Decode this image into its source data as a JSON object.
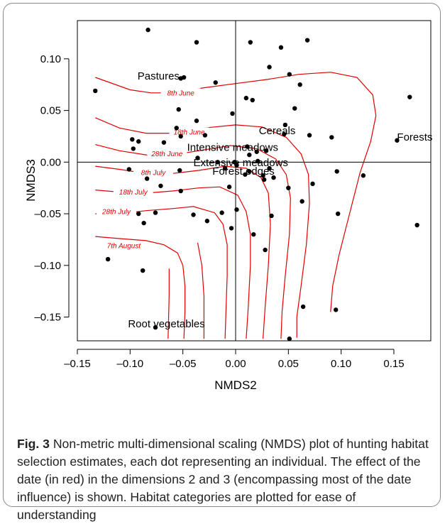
{
  "chart_data": {
    "type": "scatter",
    "xlabel": "NMDS2",
    "ylabel": "NMDS3",
    "xlim": [
      -0.15,
      0.185
    ],
    "ylim": [
      -0.173,
      0.137
    ],
    "xticks": [
      -0.15,
      -0.1,
      -0.05,
      0.0,
      0.05,
      0.1,
      0.15
    ],
    "xtick_labels": [
      "–0.15",
      "–0.10",
      "–0.05",
      "0.00",
      "0.05",
      "0.10",
      "0.15"
    ],
    "yticks": [
      0.1,
      0.05,
      0.0,
      -0.05,
      -0.1,
      -0.15
    ],
    "ytick_labels": [
      "0.10",
      "0.05",
      "0.00",
      "–0.05",
      "–0.10",
      "–0.15"
    ],
    "reference_lines": {
      "x": 0,
      "y": 0
    },
    "points": [
      [
        -0.133,
        0.069
      ],
      [
        -0.083,
        0.128
      ],
      [
        -0.037,
        0.116
      ],
      [
        -0.052,
        0.081
      ],
      [
        -0.049,
        0.082
      ],
      [
        -0.019,
        0.077
      ],
      [
        0.014,
        0.116
      ],
      [
        0.043,
        0.111
      ],
      [
        0.068,
        0.118
      ],
      [
        0.032,
        0.092
      ],
      [
        0.051,
        0.085
      ],
      [
        0.061,
        0.075
      ],
      [
        0.01,
        0.062
      ],
      [
        0.016,
        0.06
      ],
      [
        0.056,
        0.052
      ],
      [
        0.165,
        0.063
      ],
      [
        -0.054,
        0.051
      ],
      [
        -0.037,
        0.04
      ],
      [
        -0.056,
        0.033
      ],
      [
        -0.052,
        0.025
      ],
      [
        -0.029,
        0.026
      ],
      [
        -0.068,
        0.019
      ],
      [
        -0.098,
        0.022
      ],
      [
        -0.092,
        0.02
      ],
      [
        -0.097,
        0.013
      ],
      [
        -0.003,
        0.047
      ],
      [
        0.047,
        0.036
      ],
      [
        0.046,
        0.027
      ],
      [
        0.07,
        0.026
      ],
      [
        0.091,
        0.024
      ],
      [
        0.153,
        0.021
      ],
      [
        0.011,
        0.015
      ],
      [
        0.02,
        0.01
      ],
      [
        0.029,
        0.011
      ],
      [
        -0.036,
        0.004
      ],
      [
        -0.017,
        0.0
      ],
      [
        -0.001,
        0.0
      ],
      [
        0.013,
        0.007
      ],
      [
        0.021,
        0.001
      ],
      [
        -0.101,
        -0.007
      ],
      [
        -0.053,
        -0.008
      ],
      [
        -0.01,
        -0.006
      ],
      [
        0.001,
        -0.003
      ],
      [
        0.009,
        -0.012
      ],
      [
        0.013,
        -0.009
      ],
      [
        0.026,
        -0.013
      ],
      [
        0.027,
        -0.017
      ],
      [
        0.032,
        -0.006
      ],
      [
        0.036,
        -0.015
      ],
      [
        -0.084,
        -0.016
      ],
      [
        -0.071,
        -0.023
      ],
      [
        -0.006,
        -0.024
      ],
      [
        0.05,
        -0.025
      ],
      [
        0.073,
        -0.021
      ],
      [
        0.096,
        -0.009
      ],
      [
        0.121,
        -0.013
      ],
      [
        -0.052,
        -0.028
      ],
      [
        0.001,
        -0.046
      ],
      [
        0.063,
        -0.038
      ],
      [
        -0.092,
        -0.05
      ],
      [
        -0.076,
        -0.049
      ],
      [
        -0.04,
        -0.051
      ],
      [
        -0.027,
        -0.057
      ],
      [
        -0.013,
        -0.049
      ],
      [
        0.034,
        -0.052
      ],
      [
        0.097,
        -0.05
      ],
      [
        -0.087,
        -0.059
      ],
      [
        -0.004,
        -0.064
      ],
      [
        0.017,
        -0.07
      ],
      [
        0.028,
        -0.085
      ],
      [
        0.172,
        -0.061
      ],
      [
        -0.121,
        -0.094
      ],
      [
        -0.088,
        -0.105
      ],
      [
        -0.076,
        -0.16
      ],
      [
        0.064,
        -0.14
      ],
      [
        0.095,
        -0.143
      ],
      [
        0.051,
        -0.171
      ]
    ],
    "habitat_labels": [
      {
        "text": "Pastures",
        "x": -0.093,
        "y": 0.08
      },
      {
        "text": "Cereals",
        "x": 0.022,
        "y": 0.027
      },
      {
        "text": "Forests",
        "x": 0.153,
        "y": 0.021
      },
      {
        "text": "Intensive meadows",
        "x": -0.046,
        "y": 0.011
      },
      {
        "text": "Extensive meadows",
        "x": -0.04,
        "y": -0.004
      },
      {
        "text": "Forest edges",
        "x": -0.022,
        "y": -0.012
      },
      {
        "text": "Root vegetables",
        "x": -0.102,
        "y": -0.16
      }
    ],
    "contour_color": "#e00000",
    "contours": [
      {
        "label": "8th June",
        "label_pos": [
          -0.052,
          0.066
        ],
        "points": [
          [
            -0.133,
            0.082
          ],
          [
            -0.1,
            0.07
          ],
          [
            -0.08,
            0.067
          ],
          [
            -0.06,
            0.067
          ],
          [
            -0.03,
            0.072
          ],
          [
            0.0,
            0.076
          ],
          [
            0.03,
            0.08
          ],
          [
            0.06,
            0.085
          ],
          [
            0.09,
            0.087
          ],
          [
            0.115,
            0.082
          ],
          [
            0.13,
            0.065
          ],
          [
            0.133,
            0.045
          ],
          [
            0.128,
            0.02
          ],
          [
            0.118,
            -0.01
          ],
          [
            0.108,
            -0.05
          ],
          [
            0.098,
            -0.09
          ],
          [
            0.092,
            -0.12
          ],
          [
            0.09,
            -0.145
          ]
        ]
      },
      {
        "label": "18th June",
        "label_pos": [
          -0.044,
          0.028
        ],
        "points": [
          [
            -0.133,
            0.043
          ],
          [
            -0.11,
            0.033
          ],
          [
            -0.085,
            0.028
          ],
          [
            -0.06,
            0.028
          ],
          [
            -0.03,
            0.033
          ],
          [
            0.0,
            0.036
          ],
          [
            0.025,
            0.034
          ],
          [
            0.048,
            0.024
          ],
          [
            0.062,
            0.008
          ],
          [
            0.069,
            -0.012
          ],
          [
            0.07,
            -0.04
          ],
          [
            0.067,
            -0.08
          ],
          [
            0.062,
            -0.12
          ],
          [
            0.058,
            -0.15
          ],
          [
            0.058,
            -0.17
          ]
        ]
      },
      {
        "label": "28th June",
        "label_pos": [
          -0.065,
          0.007
        ],
        "points": [
          [
            -0.133,
            0.017
          ],
          [
            -0.11,
            0.011
          ],
          [
            -0.085,
            0.007
          ],
          [
            -0.06,
            0.007
          ],
          [
            -0.035,
            0.011
          ],
          [
            -0.005,
            0.016
          ],
          [
            0.02,
            0.013
          ],
          [
            0.038,
            0.003
          ],
          [
            0.048,
            -0.012
          ],
          [
            0.052,
            -0.035
          ],
          [
            0.051,
            -0.07
          ],
          [
            0.047,
            -0.11
          ],
          [
            0.044,
            -0.145
          ],
          [
            0.043,
            -0.171
          ]
        ]
      },
      {
        "label": "8th July",
        "label_pos": [
          -0.078,
          -0.011
        ],
        "points": [
          [
            -0.133,
            -0.004
          ],
          [
            -0.11,
            -0.007
          ],
          [
            -0.085,
            -0.011
          ],
          [
            -0.06,
            -0.011
          ],
          [
            -0.035,
            -0.008
          ],
          [
            -0.01,
            -0.004
          ],
          [
            0.01,
            -0.006
          ],
          [
            0.024,
            -0.015
          ],
          [
            0.031,
            -0.03
          ],
          [
            0.033,
            -0.06
          ],
          [
            0.031,
            -0.1
          ],
          [
            0.028,
            -0.14
          ],
          [
            0.026,
            -0.171
          ]
        ]
      },
      {
        "label": "18th July",
        "label_pos": [
          -0.097,
          -0.03
        ],
        "points": [
          [
            -0.133,
            -0.027
          ],
          [
            -0.11,
            -0.029
          ],
          [
            -0.085,
            -0.03
          ],
          [
            -0.06,
            -0.028
          ],
          [
            -0.035,
            -0.025
          ],
          [
            -0.015,
            -0.024
          ],
          [
            0.002,
            -0.032
          ],
          [
            0.01,
            -0.048
          ],
          [
            0.014,
            -0.07
          ],
          [
            0.014,
            -0.1
          ],
          [
            0.012,
            -0.14
          ],
          [
            0.01,
            -0.171
          ]
        ]
      },
      {
        "label": "28th July",
        "label_pos": [
          -0.113,
          -0.049
        ],
        "points": [
          [
            -0.133,
            -0.05
          ],
          [
            -0.11,
            -0.05
          ],
          [
            -0.085,
            -0.047
          ],
          [
            -0.06,
            -0.045
          ],
          [
            -0.04,
            -0.043
          ],
          [
            -0.02,
            -0.049
          ],
          [
            -0.012,
            -0.06
          ],
          [
            -0.008,
            -0.08
          ],
          [
            -0.008,
            -0.11
          ],
          [
            -0.009,
            -0.14
          ],
          [
            -0.01,
            -0.171
          ]
        ]
      },
      {
        "label": "7th August",
        "label_pos": [
          -0.106,
          -0.082
        ],
        "points": [
          [
            -0.133,
            -0.072
          ],
          [
            -0.11,
            -0.074
          ],
          [
            -0.085,
            -0.076
          ],
          [
            -0.068,
            -0.08
          ],
          [
            -0.055,
            -0.088
          ],
          [
            -0.05,
            -0.1
          ],
          [
            -0.048,
            -0.12
          ],
          [
            -0.048,
            -0.145
          ],
          [
            -0.049,
            -0.171
          ]
        ]
      },
      {
        "label": "",
        "label_pos": null,
        "points": [
          [
            -0.063,
            -0.103
          ],
          [
            -0.063,
            -0.13
          ],
          [
            -0.064,
            -0.171
          ]
        ]
      },
      {
        "label": "",
        "label_pos": null,
        "points": [
          [
            -0.036,
            -0.078
          ],
          [
            -0.032,
            -0.1
          ],
          [
            -0.03,
            -0.13
          ],
          [
            -0.03,
            -0.171
          ]
        ]
      }
    ]
  },
  "caption": {
    "label": "Fig. 3",
    "text": " Non-metric multi-dimensional scaling (NMDS) plot of hunting habitat selection estimates, each dot representing an individual. The effect of the date (in red) in the dimensions 2 and 3 (encompassing most of the date influence) is shown. Habitat categories are plotted for ease of understanding"
  }
}
